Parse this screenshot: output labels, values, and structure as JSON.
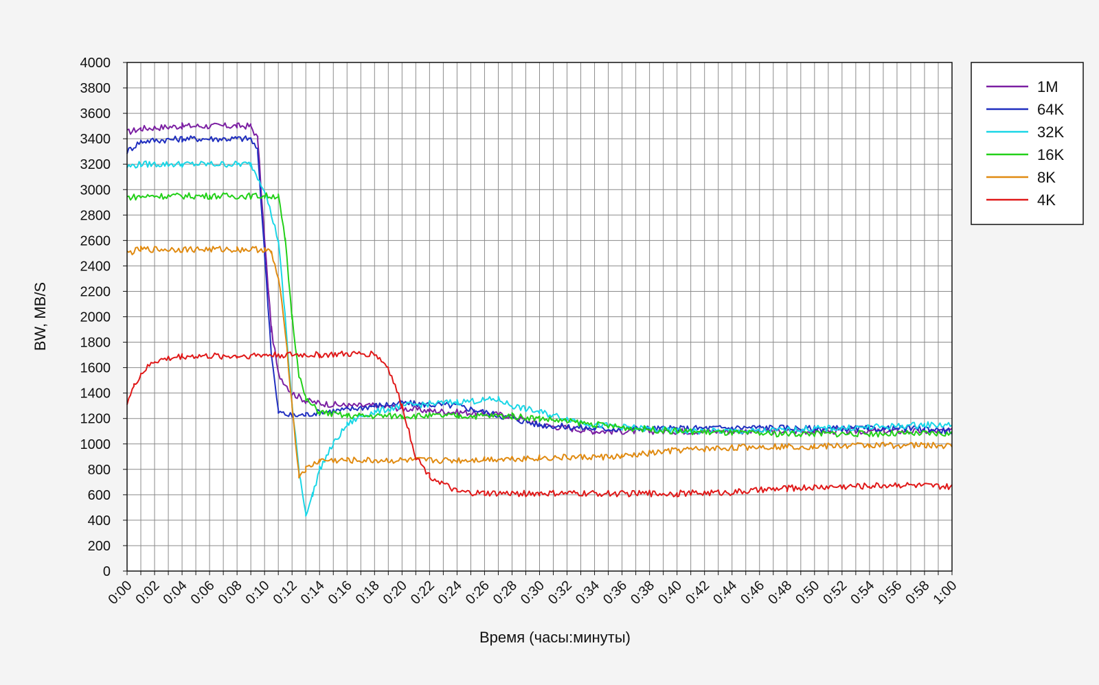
{
  "chart_data": {
    "type": "line",
    "title": "",
    "xlabel": "Время (часы:минуты)",
    "ylabel": "BW, MB/S",
    "ylim": [
      0,
      4000
    ],
    "y_ticks": [
      0,
      200,
      400,
      600,
      800,
      1000,
      1200,
      1400,
      1600,
      1800,
      2000,
      2200,
      2400,
      2600,
      2800,
      3000,
      3200,
      3400,
      3600,
      3800,
      4000
    ],
    "xlim": [
      0,
      60
    ],
    "x_tick_labels": [
      "0:00",
      "0:02",
      "0:04",
      "0:06",
      "0:08",
      "0:10",
      "0:12",
      "0:14",
      "0:16",
      "0:18",
      "0:20",
      "0:22",
      "0:24",
      "0:26",
      "0:28",
      "0:30",
      "0:32",
      "0:34",
      "0:36",
      "0:38",
      "0:40",
      "0:42",
      "0:44",
      "0:46",
      "0:48",
      "0:50",
      "0:52",
      "0:54",
      "0:56",
      "0:58",
      "1:00"
    ],
    "grid": true,
    "legend_position": "right-top",
    "series": [
      {
        "name": "1M",
        "color": "#7b1fa2",
        "x": [
          "0:00",
          "0:01",
          "0:04",
          "0:08",
          "0:09",
          "0:09:30",
          "0:10",
          "0:10:30",
          "0:11",
          "0:12",
          "0:13",
          "0:14",
          "0:16",
          "0:18",
          "0:20",
          "0:22",
          "0:26",
          "0:28",
          "0:30",
          "0:34",
          "0:40",
          "0:46",
          "0:50",
          "0:54",
          "0:58",
          "1:00"
        ],
        "y": [
          3450,
          3480,
          3500,
          3500,
          3500,
          3400,
          2600,
          1900,
          1550,
          1400,
          1340,
          1320,
          1300,
          1300,
          1280,
          1260,
          1240,
          1220,
          1150,
          1100,
          1100,
          1100,
          1100,
          1100,
          1100,
          1100
        ]
      },
      {
        "name": "64K",
        "color": "#1f2ebf",
        "x": [
          "0:00",
          "0:01",
          "0:04",
          "0:08",
          "0:09",
          "0:09:30",
          "0:10",
          "0:10:30",
          "0:11",
          "0:12",
          "0:13",
          "0:14",
          "0:16",
          "0:18",
          "0:20",
          "0:24",
          "0:28",
          "0:30",
          "0:34",
          "0:40",
          "0:46",
          "0:50",
          "0:54",
          "0:58",
          "1:00"
        ],
        "y": [
          3300,
          3380,
          3400,
          3400,
          3400,
          3300,
          2500,
          1700,
          1250,
          1220,
          1230,
          1250,
          1270,
          1300,
          1320,
          1300,
          1200,
          1150,
          1120,
          1120,
          1130,
          1120,
          1120,
          1120,
          1100
        ]
      },
      {
        "name": "32K",
        "color": "#19d6e6",
        "x": [
          "0:00",
          "0:01",
          "0:04",
          "0:08",
          "0:09",
          "0:10",
          "0:11",
          "0:11:30",
          "0:12",
          "0:12:30",
          "0:13",
          "0:13:30",
          "0:14",
          "0:15",
          "0:16",
          "0:17",
          "0:18",
          "0:20",
          "0:24",
          "0:27",
          "0:28",
          "0:30",
          "0:34",
          "0:40",
          "0:46",
          "0:50",
          "0:54",
          "0:58",
          "1:00"
        ],
        "y": [
          3180,
          3200,
          3200,
          3200,
          3200,
          3000,
          2600,
          2000,
          1300,
          800,
          450,
          600,
          800,
          1000,
          1150,
          1220,
          1250,
          1300,
          1330,
          1350,
          1300,
          1250,
          1150,
          1100,
          1100,
          1120,
          1130,
          1150,
          1150
        ]
      },
      {
        "name": "16K",
        "color": "#22d018",
        "x": [
          "0:00",
          "0:02",
          "0:06",
          "0:10",
          "0:11",
          "0:11:30",
          "0:12",
          "0:12:30",
          "0:13",
          "0:14",
          "0:16",
          "0:20",
          "0:24",
          "0:28",
          "0:30",
          "0:36",
          "0:40",
          "0:46",
          "0:50",
          "0:54",
          "0:58",
          "1:00"
        ],
        "y": [
          2940,
          2950,
          2950,
          2950,
          2950,
          2600,
          2000,
          1550,
          1350,
          1250,
          1220,
          1220,
          1220,
          1220,
          1200,
          1130,
          1100,
          1080,
          1080,
          1080,
          1080,
          1080
        ]
      },
      {
        "name": "8K",
        "color": "#e08a10",
        "x": [
          "0:00",
          "0:01",
          "0:04",
          "0:08",
          "0:10",
          "0:10:30",
          "0:11",
          "0:11:30",
          "0:12",
          "0:12:30",
          "0:13",
          "0:14",
          "0:16",
          "0:20",
          "0:24",
          "0:26",
          "0:30",
          "0:36",
          "0:40",
          "0:46",
          "0:50",
          "0:54",
          "0:58",
          "1:00"
        ],
        "y": [
          2500,
          2530,
          2530,
          2530,
          2530,
          2500,
          2300,
          1900,
          1300,
          750,
          800,
          870,
          870,
          870,
          870,
          880,
          890,
          900,
          950,
          980,
          980,
          990,
          990,
          980
        ]
      },
      {
        "name": "4K",
        "color": "#e01818",
        "x": [
          "0:00",
          "0:00:30",
          "0:01",
          "0:02",
          "0:04",
          "0:08",
          "0:10",
          "0:14",
          "0:18",
          "0:19",
          "0:20",
          "0:21",
          "0:22",
          "0:24",
          "0:26",
          "0:30",
          "0:36",
          "0:40",
          "0:44",
          "0:48",
          "0:50",
          "0:54",
          "0:56",
          "0:58",
          "1:00"
        ],
        "y": [
          1330,
          1450,
          1550,
          1650,
          1690,
          1690,
          1700,
          1700,
          1710,
          1600,
          1300,
          900,
          750,
          620,
          610,
          610,
          610,
          610,
          620,
          650,
          660,
          670,
          680,
          670,
          660
        ]
      }
    ]
  }
}
